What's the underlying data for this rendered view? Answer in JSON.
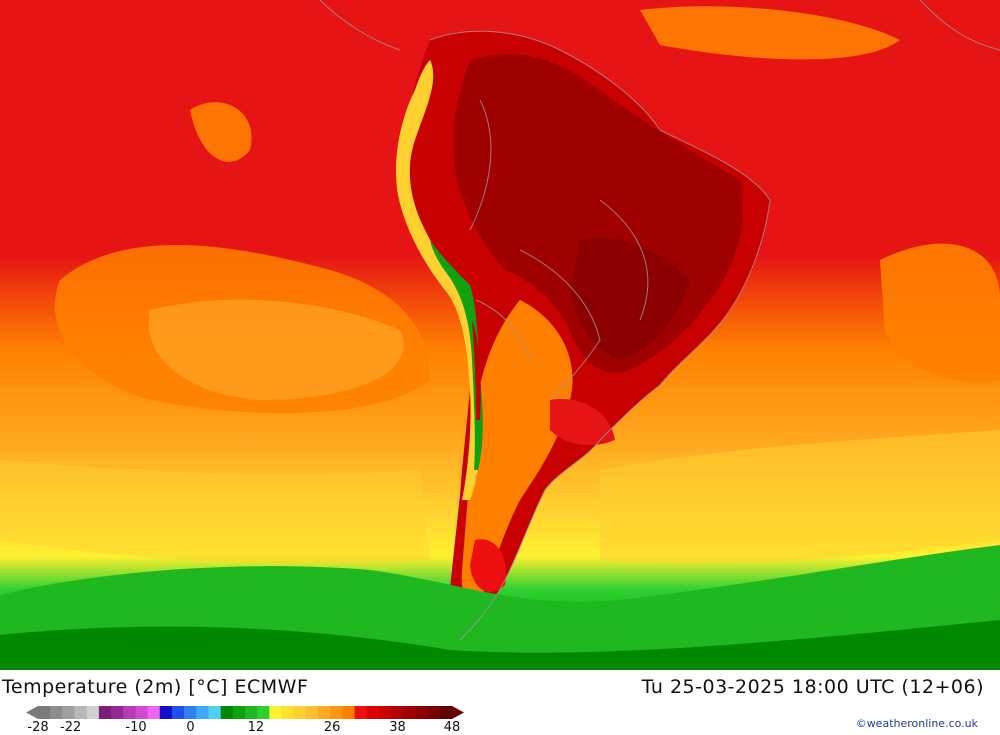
{
  "header": {
    "title": "Temperature (2m) [°C] ECMWF",
    "datetime": "Tu 25-03-2025 18:00 UTC (12+06)"
  },
  "legend": {
    "ticks": [
      {
        "label": "-28",
        "value": -28
      },
      {
        "label": "-22",
        "value": -22
      },
      {
        "label": "-10",
        "value": -10
      },
      {
        "label": "0",
        "value": 0
      },
      {
        "label": "12",
        "value": 12
      },
      {
        "label": "26",
        "value": 26
      },
      {
        "label": "38",
        "value": 38
      },
      {
        "label": "48",
        "value": 48
      }
    ],
    "colors": [
      "#7a7a7a",
      "#8c8c8c",
      "#a0a0a0",
      "#b8b8b8",
      "#d0d0d0",
      "#7a1e7a",
      "#962896",
      "#b43cb4",
      "#d24ad2",
      "#ee66ee",
      "#1010c8",
      "#2050e8",
      "#3080f0",
      "#40a8f8",
      "#50d0f8",
      "#008800",
      "#10a010",
      "#20b820",
      "#30d030",
      "#fff030",
      "#ffe030",
      "#ffd030",
      "#ffbe30",
      "#ffaa20",
      "#ff9610",
      "#ff8000",
      "#ee1010",
      "#dd0000",
      "#c80000",
      "#b40000",
      "#a00000",
      "#8c0000",
      "#780000",
      "#640000"
    ]
  },
  "map": {
    "ocean_color": "#e61414",
    "land_hot_color": "#b40000",
    "mid_color": "#ff8c00",
    "cool_color": "#ffd030",
    "south_color": "#00c800"
  },
  "credit": "©weatheronline.co.uk"
}
